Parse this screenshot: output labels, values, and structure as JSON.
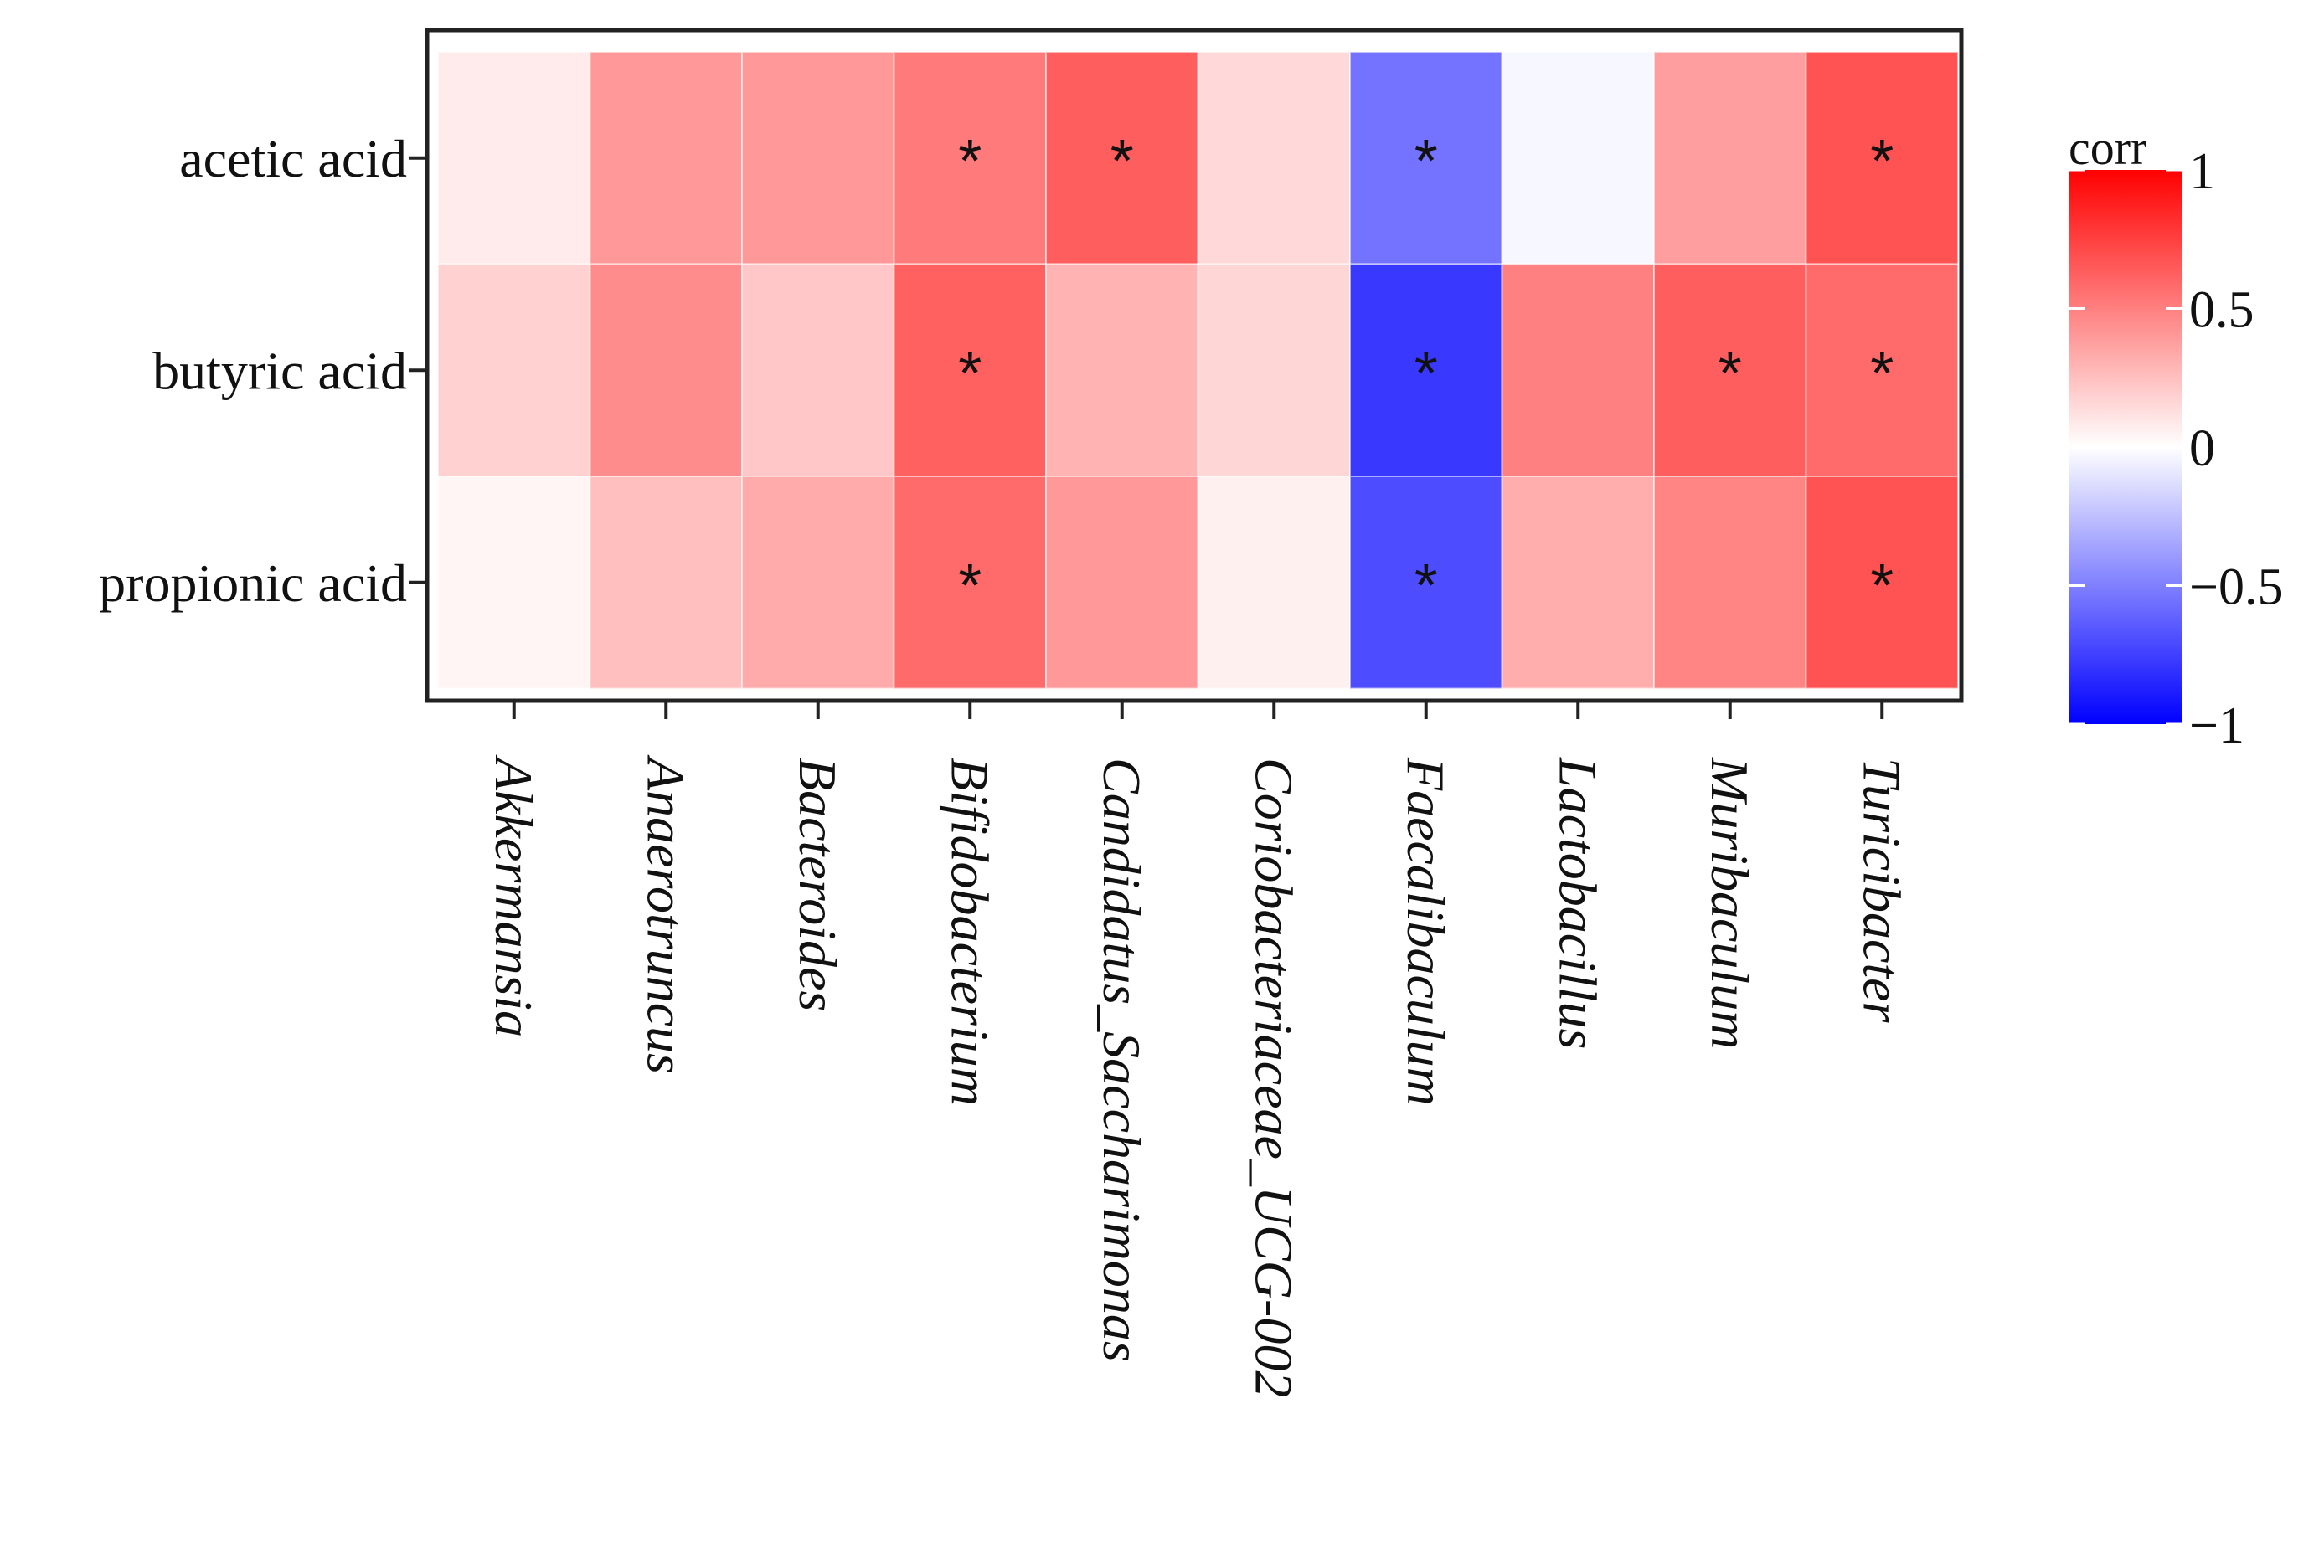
{
  "chart_data": {
    "type": "heatmap",
    "title": "",
    "xlabel": "",
    "ylabel": "",
    "rows": [
      "acetic acid",
      "butyric acid",
      "propionic acid"
    ],
    "columns": [
      "Akkermansia",
      "Anaerotruncus",
      "Bacteroides",
      "Bifidobacterium",
      "Candidatus_Saccharimonas",
      "Coriobacteriaceae_UCG-002",
      "Faecalibaculum",
      "Lactobacillus",
      "Muribaculum",
      "Turicibacter"
    ],
    "values": [
      [
        0.08,
        0.4,
        0.4,
        0.52,
        0.63,
        0.15,
        -0.55,
        -0.03,
        0.38,
        0.68
      ],
      [
        0.18,
        0.45,
        0.22,
        0.62,
        0.3,
        0.16,
        -0.78,
        0.5,
        0.63,
        0.58
      ],
      [
        0.04,
        0.25,
        0.33,
        0.58,
        0.4,
        0.06,
        -0.7,
        0.32,
        0.48,
        0.68
      ]
    ],
    "significance_marker": "*",
    "significant": [
      [
        false,
        false,
        false,
        true,
        true,
        false,
        true,
        false,
        false,
        true
      ],
      [
        false,
        false,
        false,
        true,
        false,
        false,
        true,
        false,
        true,
        true
      ],
      [
        false,
        false,
        false,
        true,
        false,
        false,
        true,
        false,
        false,
        true
      ]
    ],
    "colorbar": {
      "title": "corr",
      "range": [
        -1,
        1
      ],
      "ticks": [
        1,
        0.5,
        0,
        -0.5,
        -1
      ],
      "tick_labels": [
        "1",
        "0.5",
        "0",
        "−0.5",
        "−1"
      ],
      "colors": {
        "low": "#0000ff",
        "mid": "#ffffff",
        "high": "#ff0000"
      }
    },
    "grid": false,
    "legend_position": "right"
  }
}
